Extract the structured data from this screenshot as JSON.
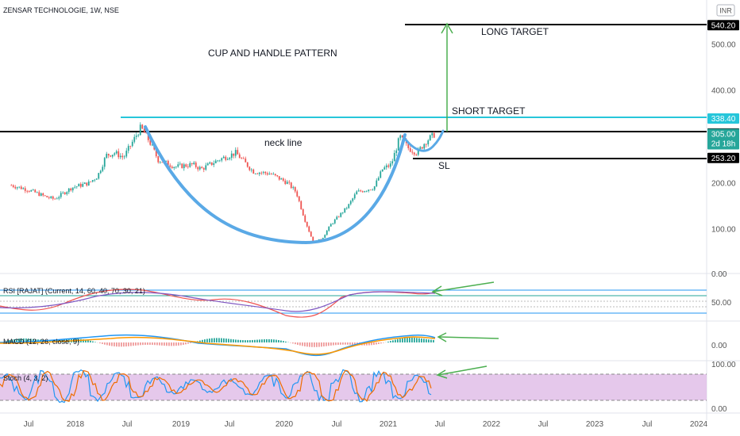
{
  "symbol_header": "ZENSAR TECHNOLOGIE, 1W, NSE",
  "currency": "INR",
  "chart_data": {
    "type": "candlestick",
    "title": "ZENSAR TECHNOLOGIE, 1W, NSE",
    "pattern_label": "CUP AND HANDLE PATTERN",
    "annotations": {
      "neck_line": "neck line",
      "long_target": "LONG TARGET",
      "short_target": "SHORT TARGET",
      "stop_loss": "SL"
    },
    "price_axis": {
      "ticks": [
        100,
        200,
        300,
        400,
        500
      ],
      "tick_labels": [
        "100.00",
        "200.00",
        "300.00",
        "400.00",
        "500.00"
      ],
      "ylim": [
        0,
        570
      ]
    },
    "price_tags": [
      {
        "label": "540.20",
        "value": 540.2,
        "color": "#000000"
      },
      {
        "label": "338.40",
        "value": 338.4,
        "color": "#26c6da"
      },
      {
        "label": "306.05",
        "value": 306.05,
        "color": "#000000"
      },
      {
        "label": "305.00",
        "value": 305.0,
        "color": "#26a69a",
        "sub": "2d 18h"
      },
      {
        "label": "253.20",
        "value": 253.2,
        "color": "#000000"
      }
    ],
    "levels": {
      "long_target": 540.2,
      "short_target": 320,
      "neck_line": 306.05,
      "stop_loss": 253.2
    },
    "time_axis": [
      "Jul",
      "2018",
      "Jul",
      "2019",
      "Jul",
      "2020",
      "Jul",
      "2021",
      "Jul",
      "2022",
      "Jul",
      "2023",
      "Jul",
      "2024"
    ],
    "price_series": [
      {
        "date": "2017-05",
        "close": 195
      },
      {
        "date": "2017-07",
        "close": 185
      },
      {
        "date": "2017-09",
        "close": 170
      },
      {
        "date": "2017-10",
        "close": 165
      },
      {
        "date": "2017-12",
        "close": 190
      },
      {
        "date": "2018-02",
        "close": 200
      },
      {
        "date": "2018-03",
        "close": 215
      },
      {
        "date": "2018-04",
        "close": 260
      },
      {
        "date": "2018-05",
        "close": 265
      },
      {
        "date": "2018-06",
        "close": 255
      },
      {
        "date": "2018-08",
        "close": 320
      },
      {
        "date": "2018-09",
        "close": 290
      },
      {
        "date": "2018-10",
        "close": 250
      },
      {
        "date": "2018-12",
        "close": 235
      },
      {
        "date": "2019-02",
        "close": 240
      },
      {
        "date": "2019-03",
        "close": 230
      },
      {
        "date": "2019-05",
        "close": 250
      },
      {
        "date": "2019-07",
        "close": 265
      },
      {
        "date": "2019-09",
        "close": 225
      },
      {
        "date": "2019-11",
        "close": 220
      },
      {
        "date": "2020-01",
        "close": 200
      },
      {
        "date": "2020-02",
        "close": 180
      },
      {
        "date": "2020-03",
        "close": 120
      },
      {
        "date": "2020-04",
        "close": 70
      },
      {
        "date": "2020-05",
        "close": 80
      },
      {
        "date": "2020-06",
        "close": 110
      },
      {
        "date": "2020-08",
        "close": 150
      },
      {
        "date": "2020-09",
        "close": 180
      },
      {
        "date": "2020-11",
        "close": 190
      },
      {
        "date": "2020-12",
        "close": 230
      },
      {
        "date": "2021-01",
        "close": 240
      },
      {
        "date": "2021-02",
        "close": 300
      },
      {
        "date": "2021-03",
        "close": 275
      },
      {
        "date": "2021-04",
        "close": 265
      },
      {
        "date": "2021-05",
        "close": 290
      },
      {
        "date": "2021-06",
        "close": 305
      }
    ],
    "indicators": [
      {
        "name": "RSI",
        "label": "RSI [RAJAT] (Current, 14, 60, 40, 70, 30, 21)",
        "axis_labels": [
          "0.00",
          "50.00"
        ],
        "lines": [
          80,
          70,
          60,
          50,
          40,
          30
        ]
      },
      {
        "name": "MACD",
        "label": "MACD (12, 26, close, 9)",
        "axis_labels": [
          "0.00"
        ]
      },
      {
        "name": "Stoch",
        "label": "Stoch (4, 3, 2)",
        "axis_labels": [
          "100.00",
          "0.00"
        ],
        "band": [
          20,
          80
        ]
      }
    ]
  },
  "colors": {
    "up": "#26a69a",
    "down": "#ef5350",
    "cup": "#5aa9e6",
    "arrow": "#4caf50",
    "stoch_band": "#e1bee7",
    "rsi_line": "#7e57c2",
    "macd": "#2196f3",
    "signal": "#ff9800"
  }
}
